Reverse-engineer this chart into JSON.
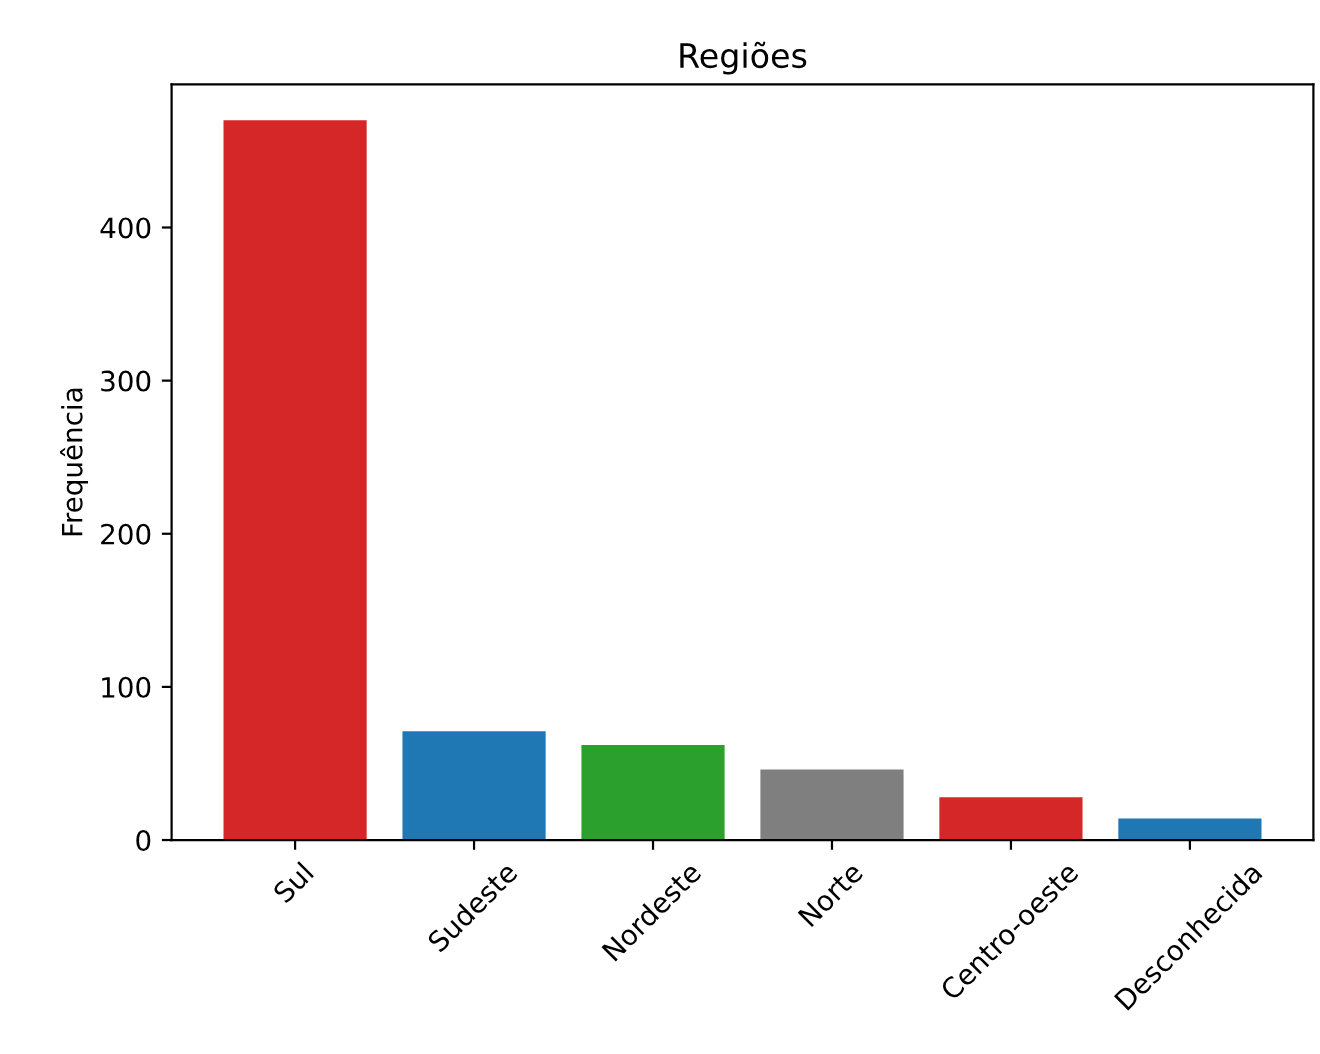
{
  "chart_data": {
    "type": "bar",
    "title": "Regiões",
    "ylabel": "Frequência",
    "categories": [
      "Sul",
      "Sudeste",
      "Nordeste",
      "Norte",
      "Centro-oeste",
      "Desconhecida"
    ],
    "values": [
      470,
      71,
      62,
      46,
      28,
      14
    ],
    "colors": [
      "#d62728",
      "#1f77b4",
      "#2ca02c",
      "#7f7f7f",
      "#d62728",
      "#1f77b4"
    ],
    "ylim": [
      0,
      493.5
    ],
    "yticks": [
      0,
      100,
      200,
      300,
      400
    ],
    "grid": false
  }
}
